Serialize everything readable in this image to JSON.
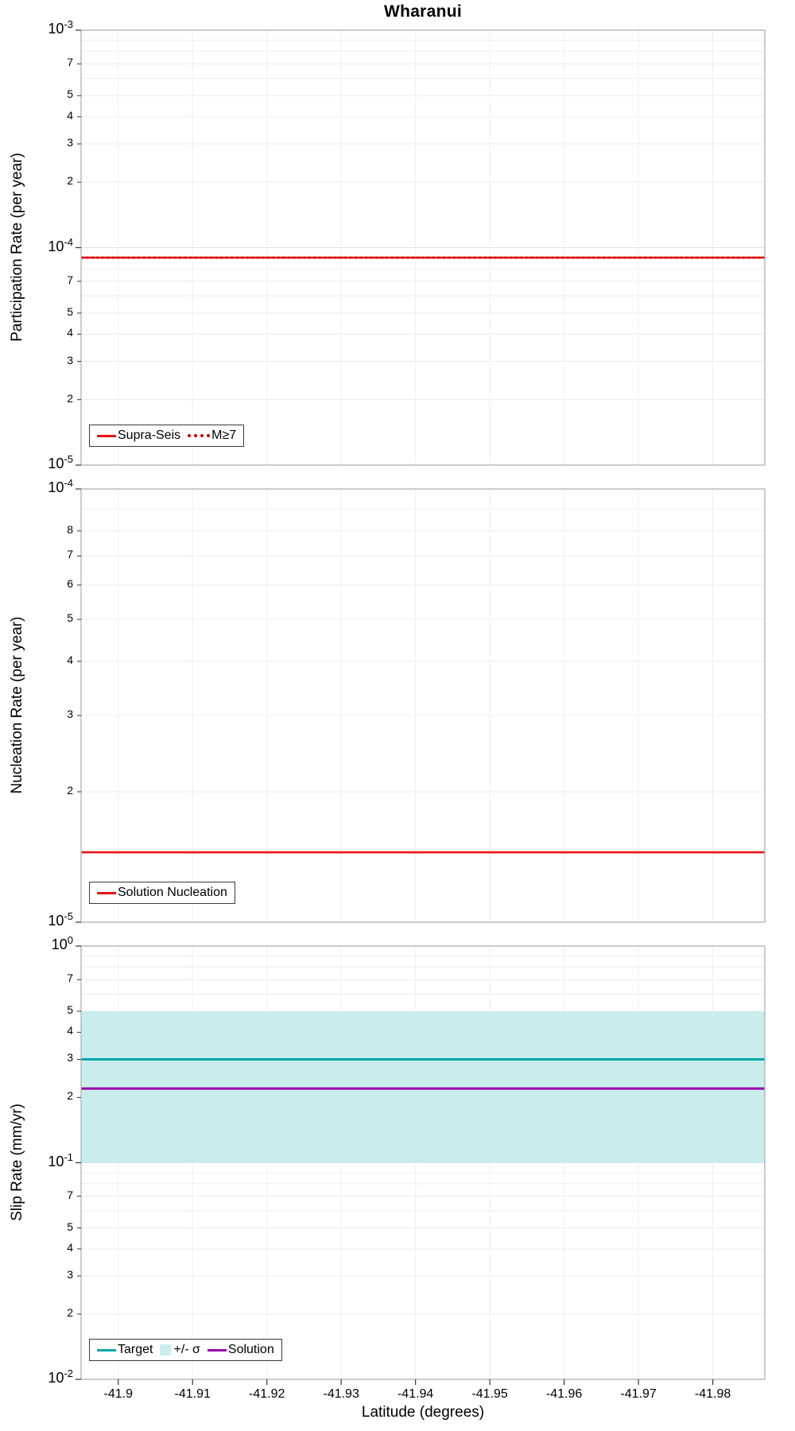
{
  "title": "Wharanui",
  "x_axis": {
    "label": "Latitude (degrees)",
    "range": [
      -41.895,
      -41.987
    ],
    "reversed": true,
    "ticks": [
      {
        "value": -41.9,
        "label": "-41.9"
      },
      {
        "value": -41.91,
        "label": "-41.91"
      },
      {
        "value": -41.92,
        "label": "-41.92"
      },
      {
        "value": -41.93,
        "label": "-41.93"
      },
      {
        "value": -41.94,
        "label": "-41.94"
      },
      {
        "value": -41.95,
        "label": "-41.95"
      },
      {
        "value": -41.96,
        "label": "-41.96"
      },
      {
        "value": -41.97,
        "label": "-41.97"
      },
      {
        "value": -41.98,
        "label": "-41.98"
      }
    ]
  },
  "style": {
    "background": "#ffffff",
    "grid_minor": "#ececec",
    "grid_major": "#dedede",
    "grid_vertical": "#eeeeee",
    "frame": "#b0b0b0",
    "tick": "#333333",
    "legend_border": "#3a3a3a",
    "text": "#000000"
  },
  "chart_data": [
    {
      "id": "participation",
      "type": "line",
      "yscale": "log",
      "ylabel": "Participation Rate (per year)",
      "ylim": [
        1e-05,
        0.001
      ],
      "ylim_exp": [
        -5,
        -3
      ],
      "decade_ticks_exp": [
        -3,
        -4,
        -5
      ],
      "minor_tick_digits": [
        7,
        5,
        4,
        3,
        2
      ],
      "grid": true,
      "x_range": [
        -41.895,
        -41.987
      ],
      "series": [
        {
          "name": "Supra-Seis",
          "style": "solid",
          "width": 2.6,
          "color": "#ee1111",
          "value": 9e-05
        },
        {
          "name": "M≥7",
          "style": "dotted",
          "width": 2.6,
          "color": "#c00000",
          "value": 9e-05
        }
      ],
      "legend_position": "bottom-left",
      "legend": [
        {
          "label": "Supra-Seis",
          "swatch": "line",
          "color": "#ee1111"
        },
        {
          "label": "M≥7",
          "swatch": "dotted-line",
          "color": "#c00000"
        }
      ]
    },
    {
      "id": "nucleation",
      "type": "line",
      "yscale": "log",
      "ylabel": "Nucleation Rate (per year)",
      "ylim": [
        1e-05,
        0.0001
      ],
      "ylim_exp": [
        -5,
        -4
      ],
      "decade_ticks_exp": [
        -4,
        -5
      ],
      "minor_tick_digits": [
        8,
        7,
        6,
        5,
        4,
        3,
        2
      ],
      "grid": true,
      "x_range": [
        -41.895,
        -41.987
      ],
      "series": [
        {
          "name": "Solution Nucleation",
          "style": "solid",
          "width": 2.6,
          "color": "#ee1111",
          "value": 1.45e-05
        }
      ],
      "legend_position": "bottom-left",
      "legend": [
        {
          "label": "Solution Nucleation",
          "swatch": "line",
          "color": "#ee1111"
        }
      ]
    },
    {
      "id": "slip-rate",
      "type": "line",
      "yscale": "log",
      "ylabel": "Slip Rate (mm/yr)",
      "ylim": [
        0.01,
        1.0
      ],
      "ylim_exp": [
        -2,
        0
      ],
      "decade_ticks_exp": [
        0,
        -1,
        -2
      ],
      "minor_tick_digits": [
        7,
        5,
        4,
        3,
        2
      ],
      "grid": true,
      "x_range": [
        -41.895,
        -41.987
      ],
      "band": {
        "name": "+/- σ",
        "lo": 0.1,
        "hi": 0.5,
        "color": "#c9eded"
      },
      "series": [
        {
          "name": "Target",
          "style": "solid",
          "width": 3,
          "color": "#00a9a9",
          "value": 0.3
        },
        {
          "name": "Solution",
          "style": "solid",
          "width": 3,
          "color": "#9900aa",
          "value": 0.22
        }
      ],
      "legend_position": "bottom-left",
      "legend": [
        {
          "label": "Target",
          "swatch": "line",
          "color": "#00a9a9"
        },
        {
          "label": "+/- σ",
          "swatch": "band",
          "color": "#c9eded"
        },
        {
          "label": "Solution",
          "swatch": "line",
          "color": "#9900aa"
        }
      ]
    }
  ]
}
